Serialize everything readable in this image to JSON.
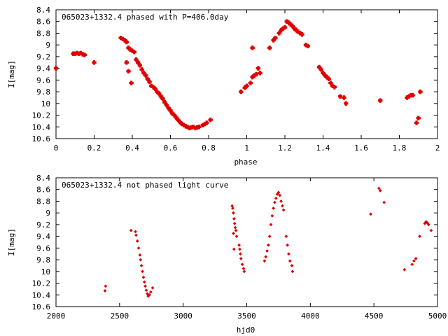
{
  "chart_data": [
    {
      "type": "scatter",
      "title": "065023+1332.4 phased with P=406.0day",
      "xlabel": "phase",
      "ylabel": "I[mag]",
      "xlim": [
        0,
        2
      ],
      "ylim": [
        10.6,
        8.4
      ],
      "y_inverted": true,
      "xticks": [
        "0",
        "0.2",
        "0.4",
        "0.6",
        "0.8",
        "1",
        "1.2",
        "1.4",
        "1.6",
        "1.8",
        "2"
      ],
      "yticks": [
        "8.4",
        "8.6",
        "8.8",
        "9",
        "9.2",
        "9.4",
        "9.6",
        "9.8",
        "10",
        "10.2",
        "10.4",
        "10.6"
      ],
      "marker_color": "#e00000",
      "series": [
        {
          "points": [
            [
              0.0,
              9.4
            ],
            [
              0.09,
              9.15
            ],
            [
              0.1,
              9.15
            ],
            [
              0.11,
              9.14
            ],
            [
              0.12,
              9.15
            ],
            [
              0.13,
              9.14
            ],
            [
              0.14,
              9.16
            ],
            [
              0.15,
              9.17
            ],
            [
              0.2,
              9.3
            ],
            [
              0.34,
              8.88
            ],
            [
              0.35,
              8.9
            ],
            [
              0.36,
              8.92
            ],
            [
              0.37,
              8.95
            ],
            [
              0.38,
              9.05
            ],
            [
              0.39,
              9.08
            ],
            [
              0.4,
              9.1
            ],
            [
              0.41,
              9.12
            ],
            [
              0.37,
              9.3
            ],
            [
              0.38,
              9.45
            ],
            [
              0.395,
              9.65
            ],
            [
              0.42,
              9.25
            ],
            [
              0.43,
              9.3
            ],
            [
              0.44,
              9.35
            ],
            [
              0.45,
              9.42
            ],
            [
              0.46,
              9.48
            ],
            [
              0.47,
              9.52
            ],
            [
              0.48,
              9.58
            ],
            [
              0.49,
              9.63
            ],
            [
              0.5,
              9.7
            ],
            [
              0.51,
              9.72
            ],
            [
              0.52,
              9.75
            ],
            [
              0.53,
              9.8
            ],
            [
              0.54,
              9.83
            ],
            [
              0.55,
              9.88
            ],
            [
              0.56,
              9.92
            ],
            [
              0.57,
              9.98
            ],
            [
              0.58,
              10.03
            ],
            [
              0.59,
              10.08
            ],
            [
              0.6,
              10.12
            ],
            [
              0.61,
              10.17
            ],
            [
              0.62,
              10.2
            ],
            [
              0.63,
              10.24
            ],
            [
              0.64,
              10.28
            ],
            [
              0.65,
              10.32
            ],
            [
              0.66,
              10.35
            ],
            [
              0.67,
              10.37
            ],
            [
              0.68,
              10.39
            ],
            [
              0.69,
              10.4
            ],
            [
              0.7,
              10.42
            ],
            [
              0.71,
              10.41
            ],
            [
              0.72,
              10.4
            ],
            [
              0.73,
              10.42
            ],
            [
              0.74,
              10.41
            ],
            [
              0.75,
              10.4
            ],
            [
              0.77,
              10.37
            ],
            [
              0.78,
              10.35
            ],
            [
              0.79,
              10.33
            ],
            [
              0.81,
              10.28
            ],
            [
              0.97,
              9.8
            ],
            [
              0.99,
              9.73
            ],
            [
              1.0,
              9.7
            ],
            [
              1.02,
              9.65
            ],
            [
              1.03,
              9.55
            ],
            [
              1.04,
              9.52
            ],
            [
              1.05,
              9.5
            ],
            [
              1.06,
              9.4
            ],
            [
              1.07,
              9.48
            ],
            [
              1.03,
              9.05
            ],
            [
              1.12,
              9.05
            ],
            [
              1.14,
              8.92
            ],
            [
              1.15,
              8.88
            ],
            [
              1.17,
              8.8
            ],
            [
              1.18,
              8.75
            ],
            [
              1.19,
              8.72
            ],
            [
              1.2,
              8.7
            ],
            [
              1.21,
              8.6
            ],
            [
              1.22,
              8.62
            ],
            [
              1.23,
              8.65
            ],
            [
              1.24,
              8.68
            ],
            [
              1.25,
              8.72
            ],
            [
              1.26,
              8.75
            ],
            [
              1.27,
              8.78
            ],
            [
              1.28,
              8.8
            ],
            [
              1.29,
              8.82
            ],
            [
              1.31,
              9.0
            ],
            [
              1.32,
              9.02
            ],
            [
              1.38,
              9.38
            ],
            [
              1.39,
              9.42
            ],
            [
              1.4,
              9.48
            ],
            [
              1.41,
              9.52
            ],
            [
              1.42,
              9.55
            ],
            [
              1.43,
              9.58
            ],
            [
              1.44,
              9.65
            ],
            [
              1.45,
              9.7
            ],
            [
              1.46,
              9.72
            ],
            [
              1.49,
              9.88
            ],
            [
              1.51,
              9.9
            ],
            [
              1.52,
              10.0
            ],
            [
              1.7,
              9.95
            ],
            [
              1.84,
              9.9
            ],
            [
              1.85,
              9.88
            ],
            [
              1.86,
              9.86
            ],
            [
              1.87,
              9.86
            ],
            [
              1.89,
              10.33
            ],
            [
              1.9,
              10.25
            ],
            [
              1.91,
              9.8
            ]
          ]
        }
      ]
    },
    {
      "type": "scatter",
      "title": "065023+1332.4 not phased light curve",
      "xlabel": "hjd0",
      "ylabel": "I[mag]",
      "xlim": [
        2000,
        5000
      ],
      "ylim": [
        10.6,
        8.4
      ],
      "y_inverted": true,
      "xticks": [
        "2000",
        "2500",
        "3000",
        "3500",
        "4000",
        "4500",
        "5000"
      ],
      "yticks": [
        "8.4",
        "8.6",
        "8.8",
        "9",
        "9.2",
        "9.4",
        "9.6",
        "9.8",
        "10",
        "10.2",
        "10.4",
        "10.6"
      ],
      "marker_color": "#e00000",
      "series": [
        {
          "points": [
            [
              2385,
              10.33
            ],
            [
              2390,
              10.25
            ],
            [
              2590,
              9.3
            ],
            [
              2625,
              9.32
            ],
            [
              2630,
              9.38
            ],
            [
              2640,
              9.48
            ],
            [
              2650,
              9.6
            ],
            [
              2660,
              9.72
            ],
            [
              2665,
              9.8
            ],
            [
              2672,
              9.9
            ],
            [
              2680,
              10.0
            ],
            [
              2688,
              10.1
            ],
            [
              2695,
              10.18
            ],
            [
              2702,
              10.25
            ],
            [
              2710,
              10.32
            ],
            [
              2718,
              10.38
            ],
            [
              2725,
              10.42
            ],
            [
              2735,
              10.4
            ],
            [
              2745,
              10.35
            ],
            [
              2760,
              10.28
            ],
            [
              3385,
              8.88
            ],
            [
              3390,
              8.92
            ],
            [
              3395,
              9.0
            ],
            [
              3400,
              9.1
            ],
            [
              3405,
              9.18
            ],
            [
              3410,
              9.25
            ],
            [
              3415,
              9.3
            ],
            [
              3420,
              9.4
            ],
            [
              3395,
              9.35
            ],
            [
              3400,
              9.62
            ],
            [
              3440,
              9.55
            ],
            [
              3445,
              9.62
            ],
            [
              3450,
              9.7
            ],
            [
              3455,
              9.78
            ],
            [
              3465,
              9.88
            ],
            [
              3475,
              9.95
            ],
            [
              3480,
              10.0
            ],
            [
              3640,
              9.82
            ],
            [
              3650,
              9.75
            ],
            [
              3660,
              9.65
            ],
            [
              3670,
              9.55
            ],
            [
              3680,
              9.4
            ],
            [
              3690,
              9.2
            ],
            [
              3700,
              9.05
            ],
            [
              3710,
              8.92
            ],
            [
              3720,
              8.82
            ],
            [
              3730,
              8.75
            ],
            [
              3740,
              8.68
            ],
            [
              3750,
              8.65
            ],
            [
              3760,
              8.7
            ],
            [
              3770,
              8.8
            ],
            [
              3780,
              8.88
            ],
            [
              3790,
              8.95
            ],
            [
              3810,
              9.4
            ],
            [
              3820,
              9.55
            ],
            [
              3830,
              9.7
            ],
            [
              3840,
              9.82
            ],
            [
              3855,
              9.9
            ],
            [
              3860,
              10.0
            ],
            [
              4475,
              9.02
            ],
            [
              4540,
              8.58
            ],
            [
              4550,
              8.62
            ],
            [
              4580,
              8.82
            ],
            [
              4740,
              9.97
            ],
            [
              4800,
              9.88
            ],
            [
              4815,
              9.82
            ],
            [
              4830,
              9.78
            ],
            [
              4860,
              9.4
            ],
            [
              4900,
              9.18
            ],
            [
              4910,
              9.15
            ],
            [
              4920,
              9.17
            ],
            [
              4930,
              9.2
            ],
            [
              4950,
              9.3
            ]
          ]
        }
      ]
    }
  ]
}
